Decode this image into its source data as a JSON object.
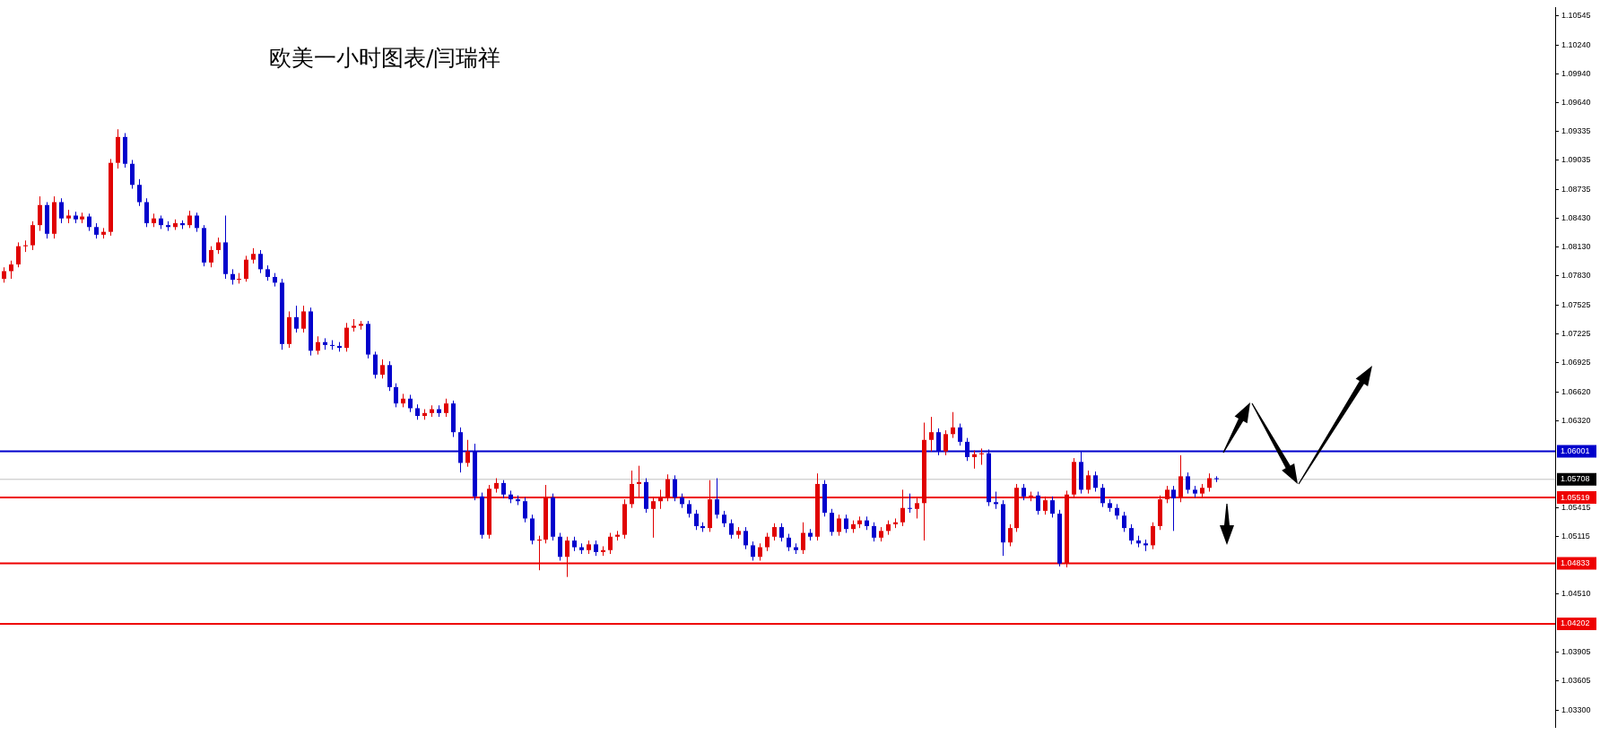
{
  "chart_data": {
    "type": "candlestick",
    "title": "欧美一小时图表/闫瑞祥",
    "categories": [
      null,
      null,
      null,
      null,
      null,
      null,
      null,
      null,
      null,
      null,
      null,
      null,
      null,
      null,
      null,
      null,
      null,
      null,
      null,
      null,
      null,
      null,
      null,
      null,
      null,
      null,
      null,
      null,
      null,
      null,
      null,
      null,
      null,
      null,
      null,
      null,
      null,
      null,
      null,
      null,
      null,
      null,
      null,
      null,
      null,
      null,
      null,
      null,
      null,
      null,
      null,
      null,
      null,
      null,
      null,
      null,
      null,
      null,
      null,
      null,
      null,
      null,
      null,
      null,
      null,
      null,
      null,
      null,
      null,
      null,
      null,
      null,
      null,
      null,
      null,
      null,
      null,
      null,
      null,
      null,
      null,
      null,
      null,
      null,
      null,
      null,
      null,
      null,
      null,
      null,
      null,
      null,
      null,
      null,
      null,
      null,
      null,
      null,
      null,
      null,
      null,
      null,
      null,
      null,
      null,
      null,
      null,
      null,
      null,
      null,
      null,
      null,
      null,
      null,
      null,
      null,
      null,
      null,
      null,
      null,
      null,
      null,
      null,
      null,
      null,
      null,
      null,
      null,
      null,
      null,
      null,
      null,
      null,
      null,
      null,
      null,
      null,
      null,
      null,
      null,
      null,
      null,
      null,
      null,
      null,
      null,
      null,
      null,
      null,
      null,
      null,
      null,
      null,
      null,
      null,
      null,
      null,
      null,
      null,
      null,
      null,
      null,
      null,
      null,
      null,
      null,
      null,
      null,
      null,
      null,
      null,
      null,
      null,
      null,
      null,
      null,
      null,
      null,
      null,
      null,
      null,
      null,
      null,
      null,
      null,
      null,
      null,
      null,
      null,
      null,
      null,
      null,
      null,
      null,
      null,
      null,
      null,
      null,
      null,
      null,
      null,
      null,
      null,
      null,
      null,
      null,
      null,
      null,
      null,
      null,
      null,
      null,
      null,
      null,
      null,
      null,
      null,
      null
    ],
    "ohlc": [
      [
        1.078,
        1.0792,
        1.0776,
        1.0788
      ],
      [
        1.0788,
        1.0799,
        1.078,
        1.0795
      ],
      [
        1.0795,
        1.0818,
        1.0792,
        1.0814
      ],
      [
        1.0814,
        1.082,
        1.0808,
        1.0815
      ],
      [
        1.0815,
        1.084,
        1.081,
        1.0836
      ],
      [
        1.0836,
        1.0866,
        1.083,
        1.0857
      ],
      [
        1.0857,
        1.086,
        1.0822,
        1.0827
      ],
      [
        1.0827,
        1.0866,
        1.0822,
        1.086
      ],
      [
        1.086,
        1.0864,
        1.0838,
        1.0843
      ],
      [
        1.0843,
        1.0852,
        1.0838,
        1.0846
      ],
      [
        1.0846,
        1.085,
        1.0838,
        1.0842
      ],
      [
        1.0842,
        1.0849,
        1.0838,
        1.0845
      ],
      [
        1.0845,
        1.0848,
        1.083,
        1.0834
      ],
      [
        1.0834,
        1.0838,
        1.0822,
        1.0826
      ],
      [
        1.0826,
        1.0833,
        1.0822,
        1.0829
      ],
      [
        1.0829,
        1.0905,
        1.0825,
        1.0901
      ],
      [
        1.0901,
        1.0936,
        1.0895,
        1.0928
      ],
      [
        1.0928,
        1.0932,
        1.0896,
        1.09
      ],
      [
        1.09,
        1.0904,
        1.0874,
        1.0878
      ],
      [
        1.0878,
        1.0884,
        1.0856,
        1.086
      ],
      [
        1.086,
        1.0864,
        1.0834,
        1.0838
      ],
      [
        1.0838,
        1.0848,
        1.0834,
        1.0843
      ],
      [
        1.0843,
        1.0846,
        1.0832,
        1.0836
      ],
      [
        1.0836,
        1.084,
        1.083,
        1.0834
      ],
      [
        1.0834,
        1.0842,
        1.0831,
        1.0838
      ],
      [
        1.0838,
        1.0841,
        1.0832,
        1.0836
      ],
      [
        1.0836,
        1.0851,
        1.0833,
        1.0846
      ],
      [
        1.0846,
        1.0849,
        1.0829,
        1.0833
      ],
      [
        1.0833,
        1.0836,
        1.0793,
        1.0797
      ],
      [
        1.0797,
        1.0814,
        1.0792,
        1.081
      ],
      [
        1.081,
        1.0823,
        1.0806,
        1.0818
      ],
      [
        1.0818,
        1.0846,
        1.078,
        1.0785
      ],
      [
        1.0785,
        1.079,
        1.0774,
        1.0779
      ],
      [
        1.0779,
        1.0786,
        1.0775,
        1.078
      ],
      [
        1.078,
        1.0804,
        1.0777,
        1.08
      ],
      [
        1.08,
        1.0812,
        1.0796,
        1.0806
      ],
      [
        1.0806,
        1.081,
        1.0786,
        1.079
      ],
      [
        1.079,
        1.0794,
        1.0778,
        1.0782
      ],
      [
        1.0782,
        1.0786,
        1.0772,
        1.0776
      ],
      [
        1.0776,
        1.078,
        1.0706,
        1.0712
      ],
      [
        1.0712,
        1.0746,
        1.0708,
        1.074
      ],
      [
        1.074,
        1.0752,
        1.0724,
        1.0728
      ],
      [
        1.0728,
        1.0752,
        1.0724,
        1.0746
      ],
      [
        1.0746,
        1.075,
        1.07,
        1.0705
      ],
      [
        1.0705,
        1.072,
        1.0701,
        1.0714
      ],
      [
        1.0714,
        1.0718,
        1.0706,
        1.0711
      ],
      [
        1.0711,
        1.0716,
        1.0706,
        1.071
      ],
      [
        1.071,
        1.0714,
        1.0704,
        1.0708
      ],
      [
        1.0708,
        1.0734,
        1.0704,
        1.0729
      ],
      [
        1.0729,
        1.0738,
        1.0725,
        1.0731
      ],
      [
        1.0731,
        1.0736,
        1.0727,
        1.0733
      ],
      [
        1.0733,
        1.0736,
        1.0697,
        1.0701
      ],
      [
        1.0701,
        1.0704,
        1.0676,
        1.068
      ],
      [
        1.068,
        1.0696,
        1.0676,
        1.069
      ],
      [
        1.069,
        1.0694,
        1.0663,
        1.0667
      ],
      [
        1.0667,
        1.0671,
        1.0646,
        1.065
      ],
      [
        1.065,
        1.066,
        1.0646,
        1.0655
      ],
      [
        1.0655,
        1.0659,
        1.0641,
        1.0645
      ],
      [
        1.0645,
        1.0649,
        1.0633,
        1.0637
      ],
      [
        1.0637,
        1.0644,
        1.0633,
        1.064
      ],
      [
        1.064,
        1.0648,
        1.0636,
        1.0644
      ],
      [
        1.0644,
        1.0648,
        1.0636,
        1.064
      ],
      [
        1.064,
        1.0655,
        1.0636,
        1.065
      ],
      [
        1.065,
        1.0653,
        1.0615,
        1.062
      ],
      [
        1.062,
        1.0625,
        1.0578,
        1.0588
      ],
      [
        1.0588,
        1.0612,
        1.0584,
        1.06
      ],
      [
        1.06,
        1.0608,
        1.0549,
        1.0553
      ],
      [
        1.0553,
        1.0557,
        1.0509,
        1.0513
      ],
      [
        1.0513,
        1.0565,
        1.0509,
        1.0561
      ],
      [
        1.0561,
        1.0572,
        1.0557,
        1.0567
      ],
      [
        1.0567,
        1.057,
        1.0551,
        1.0555
      ],
      [
        1.0555,
        1.0559,
        1.0546,
        1.055
      ],
      [
        1.055,
        1.0554,
        1.0544,
        1.0548
      ],
      [
        1.0548,
        1.0552,
        1.0526,
        1.053
      ],
      [
        1.053,
        1.0534,
        1.0503,
        1.0507
      ],
      [
        1.0507,
        1.0512,
        1.0476,
        1.0508
      ],
      [
        1.0508,
        1.0565,
        1.0504,
        1.0552
      ],
      [
        1.0552,
        1.0556,
        1.0507,
        1.0511
      ],
      [
        1.0511,
        1.0515,
        1.0486,
        1.049
      ],
      [
        1.049,
        1.0511,
        1.0469,
        1.0507
      ],
      [
        1.0507,
        1.0511,
        1.0496,
        1.05
      ],
      [
        1.05,
        1.0504,
        1.0493,
        1.0497
      ],
      [
        1.0497,
        1.0507,
        1.0493,
        1.0503
      ],
      [
        1.0503,
        1.0507,
        1.0491,
        1.0495
      ],
      [
        1.0495,
        1.0501,
        1.0491,
        1.0497
      ],
      [
        1.0497,
        1.0515,
        1.0493,
        1.0511
      ],
      [
        1.0511,
        1.0517,
        1.0507,
        1.0513
      ],
      [
        1.0513,
        1.055,
        1.0509,
        1.0545
      ],
      [
        1.0545,
        1.058,
        1.0541,
        1.0566
      ],
      [
        1.0566,
        1.0585,
        1.0552,
        1.0568
      ],
      [
        1.0568,
        1.0572,
        1.0536,
        1.054
      ],
      [
        1.054,
        1.0552,
        1.051,
        1.0548
      ],
      [
        1.0548,
        1.056,
        1.054,
        1.0552
      ],
      [
        1.0552,
        1.0576,
        1.0548,
        1.0571
      ],
      [
        1.0571,
        1.0575,
        1.0548,
        1.0552
      ],
      [
        1.0552,
        1.0556,
        1.0541,
        1.0545
      ],
      [
        1.0545,
        1.0549,
        1.0531,
        1.0535
      ],
      [
        1.0535,
        1.0539,
        1.0518,
        1.0522
      ],
      [
        1.0522,
        1.0526,
        1.0516,
        1.052
      ],
      [
        1.052,
        1.057,
        1.0516,
        1.055
      ],
      [
        1.055,
        1.0572,
        1.053,
        1.0534
      ],
      [
        1.0534,
        1.0538,
        1.0521,
        1.0525
      ],
      [
        1.0525,
        1.0529,
        1.0509,
        1.0513
      ],
      [
        1.0513,
        1.0521,
        1.0509,
        1.0517
      ],
      [
        1.0517,
        1.0521,
        1.0498,
        1.0502
      ],
      [
        1.0502,
        1.0506,
        1.0486,
        1.049
      ],
      [
        1.049,
        1.0504,
        1.0486,
        1.05
      ],
      [
        1.05,
        1.0515,
        1.0496,
        1.0511
      ],
      [
        1.0511,
        1.0525,
        1.0507,
        1.0521
      ],
      [
        1.0521,
        1.0525,
        1.0506,
        1.051
      ],
      [
        1.051,
        1.0514,
        1.0496,
        1.05
      ],
      [
        1.05,
        1.0504,
        1.0493,
        1.0497
      ],
      [
        1.0497,
        1.0526,
        1.0493,
        1.0515
      ],
      [
        1.0515,
        1.0519,
        1.0507,
        1.0511
      ],
      [
        1.0511,
        1.0577,
        1.0507,
        1.0566
      ],
      [
        1.0566,
        1.057,
        1.0532,
        1.0536
      ],
      [
        1.0536,
        1.054,
        1.0512,
        1.0516
      ],
      [
        1.0516,
        1.0534,
        1.0512,
        1.053
      ],
      [
        1.053,
        1.0534,
        1.0515,
        1.0519
      ],
      [
        1.0519,
        1.0528,
        1.0515,
        1.0524
      ],
      [
        1.0524,
        1.0532,
        1.052,
        1.0528
      ],
      [
        1.0528,
        1.0532,
        1.0518,
        1.0522
      ],
      [
        1.0522,
        1.0526,
        1.0506,
        1.051
      ],
      [
        1.051,
        1.0521,
        1.0506,
        1.0517
      ],
      [
        1.0517,
        1.0528,
        1.0513,
        1.0524
      ],
      [
        1.0524,
        1.053,
        1.052,
        1.0526
      ],
      [
        1.0526,
        1.056,
        1.0522,
        1.0541
      ],
      [
        1.0541,
        1.0556,
        1.0536,
        1.054
      ],
      [
        1.054,
        1.0551,
        1.053,
        1.0546
      ],
      [
        1.0546,
        1.063,
        1.0507,
        1.0612
      ],
      [
        1.0612,
        1.0636,
        1.06,
        1.062
      ],
      [
        1.062,
        1.0624,
        1.0596,
        1.06
      ],
      [
        1.06,
        1.0622,
        1.0596,
        1.0618
      ],
      [
        1.0618,
        1.0641,
        1.0614,
        1.0625
      ],
      [
        1.0625,
        1.0629,
        1.0606,
        1.061
      ],
      [
        1.061,
        1.0614,
        1.059,
        1.0594
      ],
      [
        1.0594,
        1.0601,
        1.0582,
        1.0597
      ],
      [
        1.0597,
        1.0603,
        1.0586,
        1.0598
      ],
      [
        1.0598,
        1.0602,
        1.0543,
        1.0547
      ],
      [
        1.0547,
        1.0558,
        1.054,
        1.0545
      ],
      [
        1.0545,
        1.0549,
        1.0491,
        1.0505
      ],
      [
        1.0505,
        1.0524,
        1.0501,
        1.052
      ],
      [
        1.052,
        1.0566,
        1.0516,
        1.0562
      ],
      [
        1.0562,
        1.0566,
        1.0549,
        1.0553
      ],
      [
        1.0553,
        1.0558,
        1.0548,
        1.0554
      ],
      [
        1.0554,
        1.0558,
        1.0534,
        1.0538
      ],
      [
        1.0538,
        1.0553,
        1.0534,
        1.0549
      ],
      [
        1.0549,
        1.0553,
        1.0531,
        1.0535
      ],
      [
        1.0535,
        1.0539,
        1.048,
        1.0483
      ],
      [
        1.0483,
        1.0559,
        1.0479,
        1.0555
      ],
      [
        1.0555,
        1.0593,
        1.0551,
        1.0589
      ],
      [
        1.0589,
        1.06,
        1.0556,
        1.056
      ],
      [
        1.056,
        1.058,
        1.0556,
        1.0575
      ],
      [
        1.0575,
        1.0579,
        1.0558,
        1.0562
      ],
      [
        1.0562,
        1.0566,
        1.0542,
        1.0546
      ],
      [
        1.0546,
        1.055,
        1.0537,
        1.0541
      ],
      [
        1.0541,
        1.0545,
        1.0529,
        1.0533
      ],
      [
        1.0533,
        1.0537,
        1.0516,
        1.052
      ],
      [
        1.052,
        1.0524,
        1.0503,
        1.0507
      ],
      [
        1.0507,
        1.0512,
        1.05,
        1.0504
      ],
      [
        1.0504,
        1.0508,
        1.0496,
        1.0502
      ],
      [
        1.0502,
        1.0526,
        1.0498,
        1.0522
      ],
      [
        1.0522,
        1.0554,
        1.0518,
        1.055
      ],
      [
        1.055,
        1.0564,
        1.0546,
        1.056
      ],
      [
        1.056,
        1.0564,
        1.0517,
        1.0551
      ],
      [
        1.0551,
        1.0596,
        1.0547,
        1.0574
      ],
      [
        1.0574,
        1.0578,
        1.0556,
        1.056
      ],
      [
        1.056,
        1.0564,
        1.0552,
        1.0556
      ],
      [
        1.0556,
        1.0566,
        1.0552,
        1.0562
      ],
      [
        1.0562,
        1.0577,
        1.0558,
        1.0572
      ],
      [
        1.0572,
        1.0574,
        1.0568,
        1.0571
      ],
      null,
      null,
      null,
      null,
      null,
      null,
      null,
      null,
      null,
      null,
      null,
      null,
      null,
      null,
      null,
      null,
      null,
      null,
      null,
      null,
      null,
      null,
      null,
      null,
      null,
      null,
      null,
      null,
      null,
      null,
      null,
      null,
      null,
      null,
      null,
      null,
      null,
      null,
      null,
      null,
      null,
      null,
      null,
      null,
      null,
      null,
      null
    ],
    "colors": [
      "#e00000",
      "#e00000",
      "#e00000",
      "#e00000",
      "#e00000",
      "#e00000",
      "#0000cc",
      "#e00000",
      "#0000cc",
      "#e00000",
      "#0000cc",
      "#e00000",
      "#0000cc",
      "#0000cc",
      "#e00000",
      "#e00000",
      "#e00000",
      "#0000cc",
      "#0000cc",
      "#0000cc",
      "#0000cc",
      "#e00000",
      "#0000cc",
      "#0000cc",
      "#e00000",
      "#0000cc",
      "#e00000",
      "#0000cc",
      "#0000cc",
      "#e00000",
      "#e00000",
      "#0000cc",
      "#0000cc",
      "#e00000",
      "#e00000",
      "#e00000",
      "#0000cc",
      "#0000cc",
      "#0000cc",
      "#0000cc",
      "#e00000",
      "#0000cc",
      "#e00000",
      "#0000cc",
      "#e00000",
      "#0000cc",
      "#0000cc",
      "#0000cc",
      "#e00000",
      "#e00000",
      "#e00000",
      "#0000cc",
      "#0000cc",
      "#e00000",
      "#0000cc",
      "#0000cc",
      "#e00000",
      "#0000cc",
      "#0000cc",
      "#e00000",
      "#e00000",
      "#0000cc",
      "#e00000",
      "#0000cc",
      "#0000cc",
      "#e00000",
      "#0000cc",
      "#0000cc",
      "#e00000",
      "#e00000",
      "#0000cc",
      "#0000cc",
      "#0000cc",
      "#0000cc",
      "#0000cc",
      "#e00000",
      "#e00000",
      "#0000cc",
      "#0000cc",
      "#e00000",
      "#0000cc",
      "#0000cc",
      "#e00000",
      "#0000cc",
      "#e00000",
      "#e00000",
      "#e00000",
      "#e00000",
      "#e00000",
      "#e00000",
      "#0000cc",
      "#e00000",
      "#e00000",
      "#e00000",
      "#0000cc",
      "#0000cc",
      "#0000cc",
      "#0000cc",
      "#0000cc",
      "#e00000",
      "#0000cc",
      "#0000cc",
      "#0000cc",
      "#e00000",
      "#0000cc",
      "#0000cc",
      "#e00000",
      "#e00000",
      "#e00000",
      "#0000cc",
      "#0000cc",
      "#0000cc",
      "#e00000",
      "#0000cc",
      "#e00000",
      "#0000cc",
      "#0000cc",
      "#e00000",
      "#0000cc",
      "#e00000",
      "#e00000",
      "#0000cc",
      "#0000cc",
      "#e00000",
      "#e00000",
      "#e00000",
      "#e00000",
      "#0000cc",
      "#e00000",
      "#e00000",
      "#e00000",
      "#0000cc",
      "#e00000",
      "#e00000",
      "#0000cc",
      "#0000cc",
      "#e00000",
      "#e00000",
      "#0000cc",
      "#0000cc",
      "#0000cc",
      "#e00000",
      "#e00000",
      "#0000cc",
      "#e00000",
      "#0000cc",
      "#e00000",
      "#0000cc",
      "#0000cc",
      "#e00000",
      "#e00000",
      "#0000cc",
      "#e00000",
      "#0000cc",
      "#0000cc",
      "#0000cc",
      "#0000cc",
      "#0000cc",
      "#0000cc",
      "#0000cc",
      "#0000cc",
      "#e00000",
      "#e00000",
      "#e00000",
      "#0000cc",
      "#e00000",
      "#0000cc",
      "#0000cc",
      "#e00000",
      "#e00000",
      "#0000cc",
      null,
      null,
      null,
      null,
      null,
      null,
      null,
      null,
      null,
      null,
      null,
      null,
      null,
      null,
      null,
      null,
      null,
      null,
      null,
      null,
      null,
      null,
      null,
      null,
      null,
      null,
      null,
      null,
      null,
      null,
      null,
      null,
      null,
      null,
      null,
      null,
      null,
      null,
      null,
      null,
      null,
      null,
      null,
      null,
      null,
      null,
      null
    ],
    "ylim": [
      1.0312,
      1.1063
    ],
    "yticks": [
      {
        "value": 1.10545,
        "label": "1.10545"
      },
      {
        "value": 1.1024,
        "label": "1.10240"
      },
      {
        "value": 1.0994,
        "label": "1.09940"
      },
      {
        "value": 1.0964,
        "label": "1.09640"
      },
      {
        "value": 1.09335,
        "label": "1.09335"
      },
      {
        "value": 1.09035,
        "label": "1.09035"
      },
      {
        "value": 1.08735,
        "label": "1.08735"
      },
      {
        "value": 1.0843,
        "label": "1.08430"
      },
      {
        "value": 1.0813,
        "label": "1.08130"
      },
      {
        "value": 1.0783,
        "label": "1.07830"
      },
      {
        "value": 1.07525,
        "label": "1.07525"
      },
      {
        "value": 1.07225,
        "label": "1.07225"
      },
      {
        "value": 1.06925,
        "label": "1.06925"
      },
      {
        "value": 1.0662,
        "label": "1.06620"
      },
      {
        "value": 1.0632,
        "label": "1.06320"
      },
      {
        "value": 1.05415,
        "label": "1.05415"
      },
      {
        "value": 1.05115,
        "label": "1.05115"
      },
      {
        "value": 1.0451,
        "label": "1.04510"
      },
      {
        "value": 1.03905,
        "label": "1.03905"
      },
      {
        "value": 1.03605,
        "label": "1.03605"
      },
      {
        "value": 1.033,
        "label": "1.03300"
      }
    ],
    "ref_lines": [
      {
        "axis": "y",
        "value": 1.06001,
        "label": "1.06001",
        "color": "#0000cc"
      },
      {
        "axis": "y",
        "value": 1.05708,
        "label": "1.05708",
        "color": "#c0c0c0"
      },
      {
        "axis": "y",
        "value": 1.05519,
        "label": "1.05519",
        "color": "#ee0000"
      },
      {
        "axis": "y",
        "value": 1.04833,
        "label": "1.04833",
        "color": "#ee0000"
      },
      {
        "axis": "y",
        "value": 1.04202,
        "label": "1.04202",
        "color": "#ee0000"
      }
    ]
  }
}
